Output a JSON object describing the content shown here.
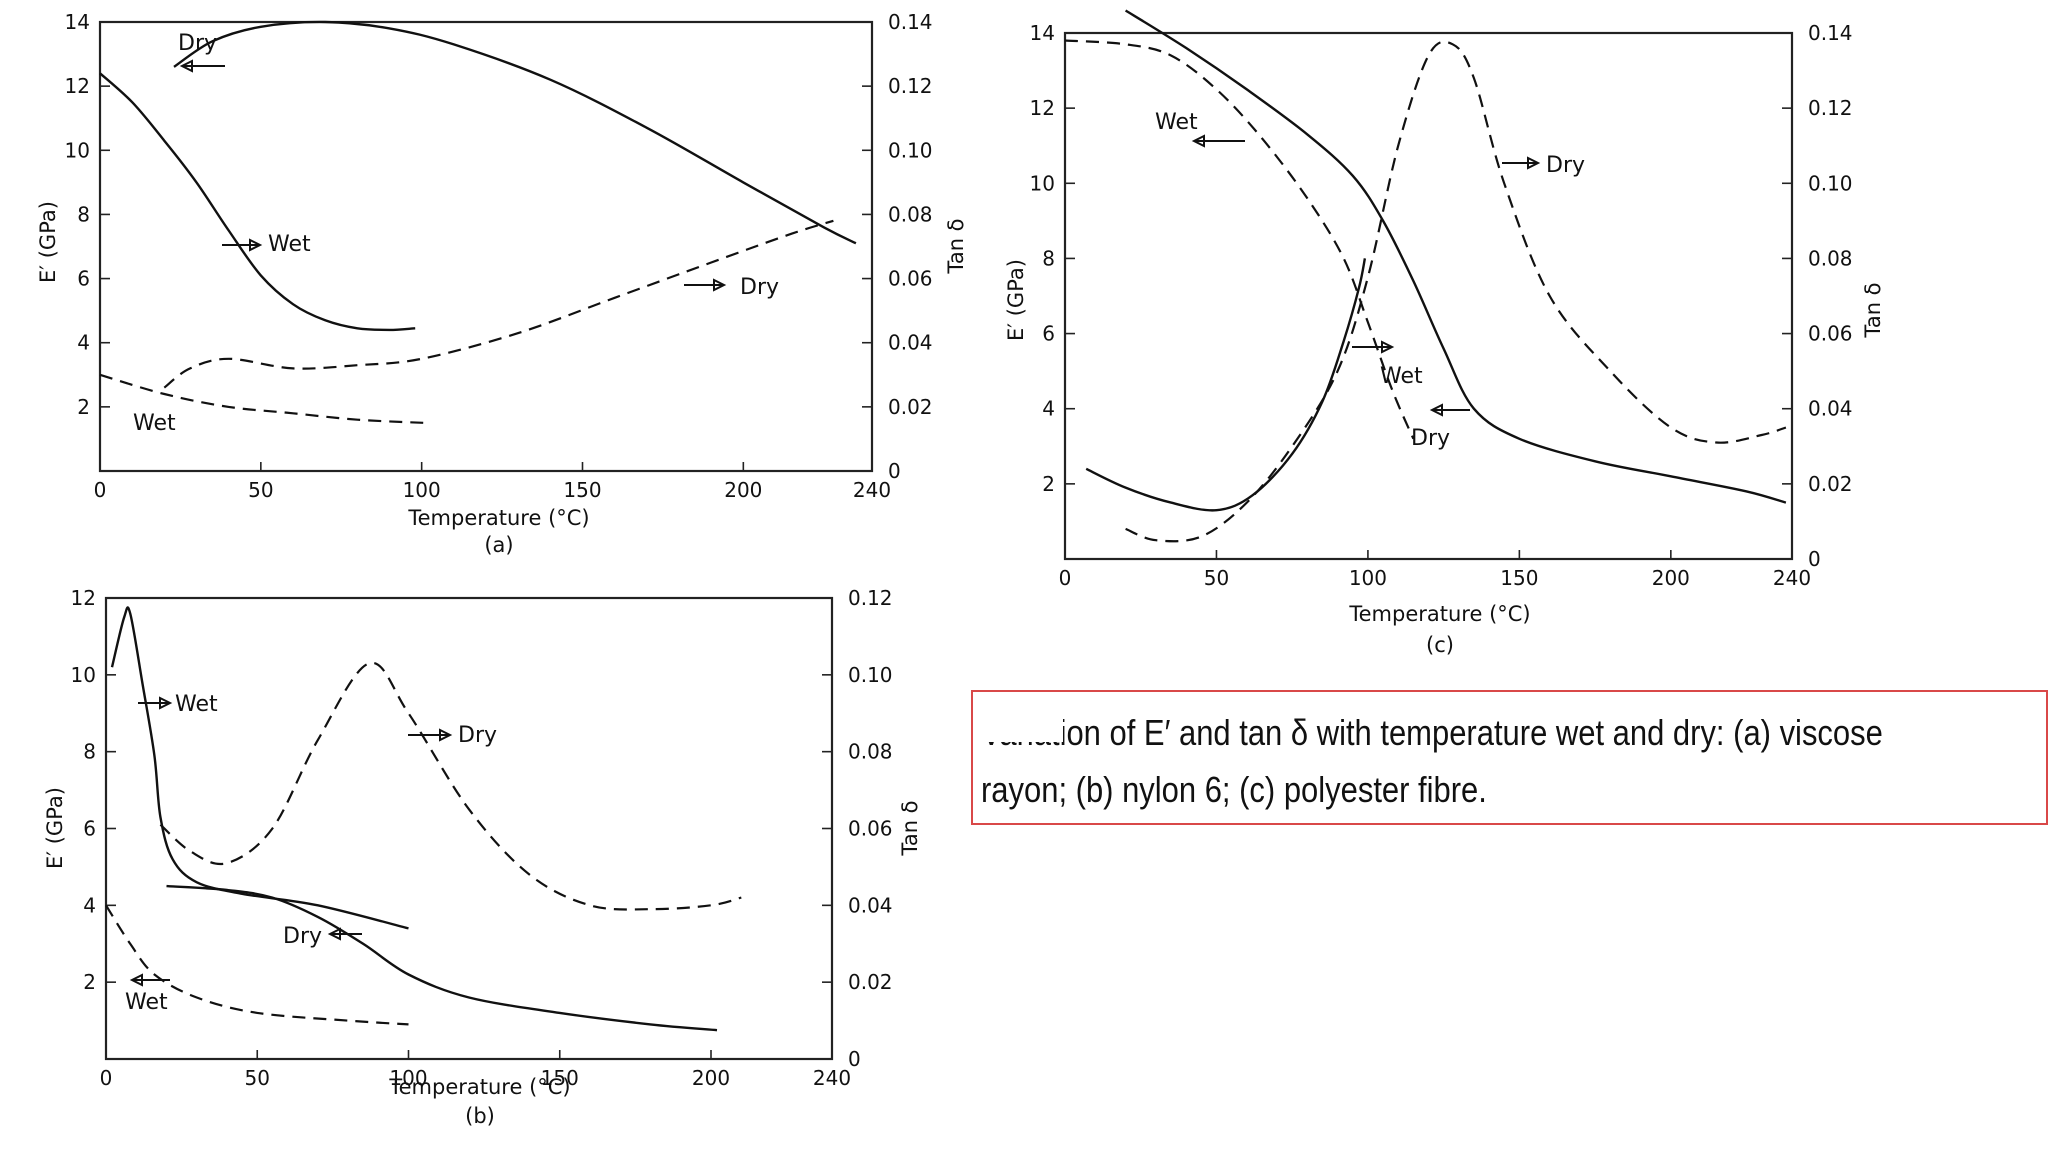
{
  "caption": {
    "line1": "Variation of E′ and tan δ with temperature wet and dry: (a) viscose",
    "line2": "rayon; (b) nylon 6; (c) polyester fibre."
  },
  "chart_data": [
    {
      "id": "a",
      "type": "line",
      "sublabel": "(a)",
      "xlabel": "Temperature (°C)",
      "ylabel": "E′ (GPa)",
      "y2label": "Tan δ",
      "xlim": [
        0,
        240
      ],
      "ylim": [
        0,
        14
      ],
      "y2lim": [
        0,
        0.14
      ],
      "xticks": [
        0,
        50,
        100,
        150,
        200,
        240
      ],
      "yticks": [
        2,
        4,
        6,
        8,
        10,
        12,
        14
      ],
      "y2ticks": [
        0,
        0.02,
        0.04,
        0.06,
        0.08,
        0.1,
        0.12,
        0.14
      ],
      "y2ticklabels": [
        "0",
        "0.02",
        "0.04",
        "0.06",
        "0.08",
        "0.10",
        "0.12",
        "0.14"
      ],
      "series": [
        {
          "name": "Dry E′",
          "axis": "left",
          "style": "solid",
          "points": [
            [
              23,
              12.6
            ],
            [
              35,
              13.4
            ],
            [
              50,
              13.85
            ],
            [
              70,
              14.0
            ],
            [
              90,
              13.8
            ],
            [
              110,
              13.3
            ],
            [
              140,
              12.2
            ],
            [
              170,
              10.7
            ],
            [
              200,
              9.0
            ],
            [
              225,
              7.6
            ],
            [
              235,
              7.1
            ]
          ]
        },
        {
          "name": "Wet E′",
          "axis": "left",
          "style": "solid",
          "points": [
            [
              0,
              12.4
            ],
            [
              10,
              11.5
            ],
            [
              20,
              10.3
            ],
            [
              30,
              9.0
            ],
            [
              40,
              7.5
            ],
            [
              50,
              6.1
            ],
            [
              60,
              5.2
            ],
            [
              70,
              4.7
            ],
            [
              80,
              4.45
            ],
            [
              90,
              4.4
            ],
            [
              98,
              4.45
            ]
          ]
        },
        {
          "name": "Dry tan δ",
          "axis": "right",
          "style": "dashed",
          "points": [
            [
              20,
              0.026
            ],
            [
              28,
              0.032
            ],
            [
              40,
              0.035
            ],
            [
              60,
              0.032
            ],
            [
              80,
              0.033
            ],
            [
              100,
              0.035
            ],
            [
              130,
              0.043
            ],
            [
              160,
              0.054
            ],
            [
              190,
              0.065
            ],
            [
              215,
              0.074
            ],
            [
              228,
              0.078
            ]
          ]
        },
        {
          "name": "Wet tan δ",
          "axis": "right",
          "style": "dashed",
          "points": [
            [
              0,
              0.03
            ],
            [
              20,
              0.024
            ],
            [
              40,
              0.02
            ],
            [
              60,
              0.018
            ],
            [
              80,
              0.016
            ],
            [
              101,
              0.015
            ]
          ]
        }
      ],
      "annotations": [
        {
          "text": "Dry",
          "target": "left axis"
        },
        {
          "text": "Wet",
          "target": "right axis"
        },
        {
          "text": "Dry",
          "target": "right axis"
        },
        {
          "text": "Wet",
          "target": "tan δ curve"
        }
      ]
    },
    {
      "id": "b",
      "type": "line",
      "sublabel": "(b)",
      "xlabel": "Temperature (°C)",
      "ylabel": "E′ (GPa)",
      "y2label": "Tan δ",
      "xlim": [
        0,
        240
      ],
      "ylim": [
        0,
        12
      ],
      "y2lim": [
        0,
        0.12
      ],
      "xticks": [
        0,
        50,
        100,
        150,
        200,
        240
      ],
      "yticks": [
        2,
        4,
        6,
        8,
        10,
        12
      ],
      "y2ticks": [
        0,
        0.02,
        0.04,
        0.06,
        0.08,
        0.1,
        0.12
      ],
      "y2ticklabels": [
        "0",
        "0.02",
        "0.04",
        "0.06",
        "0.08",
        "0.10",
        "0.12"
      ],
      "series": [
        {
          "name": "Wet tan δ (solid)",
          "axis": "right",
          "style": "solid",
          "points": [
            [
              2,
              0.102
            ],
            [
              6,
              0.115
            ],
            [
              8,
              0.116
            ],
            [
              12,
              0.098
            ],
            [
              16,
              0.079
            ],
            [
              18,
              0.063
            ],
            [
              22,
              0.052
            ],
            [
              30,
              0.046
            ],
            [
              45,
              0.043
            ],
            [
              70,
              0.04
            ],
            [
              100,
              0.034
            ]
          ]
        },
        {
          "name": "Dry E′",
          "axis": "left",
          "style": "solid",
          "points": [
            [
              20,
              4.5
            ],
            [
              40,
              4.4
            ],
            [
              55,
              4.2
            ],
            [
              70,
              3.7
            ],
            [
              85,
              3.0
            ],
            [
              100,
              2.2
            ],
            [
              120,
              1.6
            ],
            [
              150,
              1.2
            ],
            [
              180,
              0.9
            ],
            [
              202,
              0.75
            ]
          ]
        },
        {
          "name": "Dry tan δ",
          "axis": "right",
          "style": "dashed",
          "points": [
            [
              18,
              0.061
            ],
            [
              28,
              0.054
            ],
            [
              40,
              0.051
            ],
            [
              55,
              0.06
            ],
            [
              70,
              0.083
            ],
            [
              87,
              0.103
            ],
            [
              100,
              0.09
            ],
            [
              120,
              0.065
            ],
            [
              140,
              0.048
            ],
            [
              160,
              0.04
            ],
            [
              180,
              0.039
            ],
            [
              200,
              0.04
            ],
            [
              210,
              0.042
            ]
          ]
        },
        {
          "name": "Wet E′",
          "axis": "left",
          "style": "dashed",
          "points": [
            [
              0,
              4.0
            ],
            [
              8,
              3.0
            ],
            [
              16,
              2.2
            ],
            [
              30,
              1.6
            ],
            [
              50,
              1.2
            ],
            [
              80,
              1.0
            ],
            [
              100,
              0.9
            ]
          ]
        }
      ],
      "annotations": [
        {
          "text": "Wet",
          "target": "right axis"
        },
        {
          "text": "Dry",
          "target": "right axis"
        },
        {
          "text": "Dry",
          "target": "left axis"
        },
        {
          "text": "Wet",
          "target": "left axis"
        }
      ]
    },
    {
      "id": "c",
      "type": "line",
      "sublabel": "(c)",
      "xlabel": "Temperature (°C)",
      "ylabel": "E′ (GPa)",
      "y2label": "Tan δ",
      "xlim": [
        0,
        240
      ],
      "ylim": [
        0,
        14
      ],
      "y2lim": [
        0,
        0.14
      ],
      "xticks": [
        0,
        50,
        100,
        150,
        200,
        240
      ],
      "yticks": [
        2,
        4,
        6,
        8,
        10,
        12,
        14
      ],
      "y2ticks": [
        0,
        0.02,
        0.04,
        0.06,
        0.08,
        0.1,
        0.12,
        0.14
      ],
      "y2ticklabels": [
        "0",
        "0.02",
        "0.04",
        "0.06",
        "0.08",
        "0.10",
        "0.12",
        "0.14"
      ],
      "series": [
        {
          "name": "Dry E′",
          "axis": "left",
          "style": "solid",
          "points": [
            [
              20,
              14.6
            ],
            [
              40,
              13.6
            ],
            [
              60,
              12.5
            ],
            [
              80,
              11.3
            ],
            [
              95,
              10.2
            ],
            [
              105,
              9.0
            ],
            [
              115,
              7.4
            ],
            [
              125,
              5.6
            ],
            [
              135,
              4.0
            ],
            [
              150,
              3.2
            ],
            [
              175,
              2.6
            ],
            [
              200,
              2.2
            ],
            [
              225,
              1.8
            ],
            [
              238,
              1.5
            ]
          ]
        },
        {
          "name": "Wet tan δ (solid)",
          "axis": "right",
          "style": "solid",
          "points": [
            [
              7,
              0.024
            ],
            [
              20,
              0.019
            ],
            [
              35,
              0.015
            ],
            [
              50,
              0.013
            ],
            [
              62,
              0.017
            ],
            [
              75,
              0.028
            ],
            [
              85,
              0.042
            ],
            [
              92,
              0.058
            ],
            [
              97,
              0.072
            ],
            [
              99,
              0.08
            ]
          ]
        },
        {
          "name": "Wet E′",
          "axis": "left",
          "style": "dashed",
          "points": [
            [
              0,
              13.8
            ],
            [
              20,
              13.7
            ],
            [
              35,
              13.4
            ],
            [
              50,
              12.5
            ],
            [
              65,
              11.2
            ],
            [
              80,
              9.6
            ],
            [
              92,
              8.0
            ],
            [
              100,
              6.3
            ],
            [
              108,
              4.5
            ],
            [
              115,
              3.2
            ]
          ]
        },
        {
          "name": "Dry tan δ",
          "axis": "right",
          "style": "dashed",
          "points": [
            [
              20,
              0.008
            ],
            [
              30,
              0.005
            ],
            [
              45,
              0.006
            ],
            [
              60,
              0.015
            ],
            [
              75,
              0.03
            ],
            [
              90,
              0.05
            ],
            [
              100,
              0.075
            ],
            [
              110,
              0.11
            ],
            [
              120,
              0.134
            ],
            [
              128,
              0.137
            ],
            [
              135,
              0.128
            ],
            [
              145,
              0.1
            ],
            [
              160,
              0.07
            ],
            [
              180,
              0.05
            ],
            [
              200,
              0.035
            ],
            [
              215,
              0.031
            ],
            [
              230,
              0.033
            ],
            [
              238,
              0.035
            ]
          ]
        }
      ],
      "annotations": [
        {
          "text": "Wet",
          "target": "left axis"
        },
        {
          "text": "Dry",
          "target": "right axis"
        },
        {
          "text": "Wet",
          "target": "right axis"
        },
        {
          "text": "Dry",
          "target": "left axis"
        }
      ]
    }
  ]
}
